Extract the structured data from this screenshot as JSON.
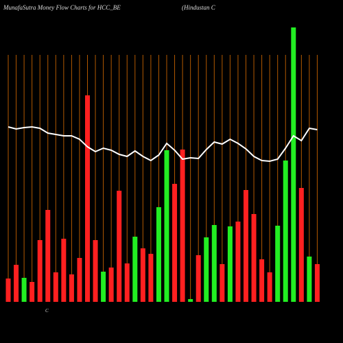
{
  "chart_data": {
    "type": "bar",
    "title": "MunafaSutra  Money  Flow  Charts for HCC_BE",
    "subtitle": "(Hindustan  C",
    "annotation": "C",
    "categories": [
      null,
      null,
      null,
      null,
      null,
      null,
      null,
      null,
      null,
      null,
      null,
      null,
      null,
      null,
      null,
      null,
      null,
      null,
      null,
      null,
      null,
      null,
      null,
      null,
      null,
      null,
      null,
      null,
      null,
      null,
      null,
      null,
      null,
      null,
      null,
      null,
      null,
      null,
      null,
      null
    ],
    "series": [
      {
        "kind": "bar",
        "values": [
          34,
          54,
          35,
          29,
          90,
          134,
          43,
          92,
          40,
          64,
          301,
          90,
          44,
          50,
          162,
          56,
          95,
          78,
          70,
          138,
          221,
          172,
          222,
          4,
          68,
          94,
          112,
          55,
          110,
          117,
          163,
          128,
          62,
          43,
          111,
          206,
          400,
          166,
          66,
          55
        ],
        "colors": [
          "#ff2020",
          "#ff2020",
          "#22ee22",
          "#ff2020",
          "#ff2020",
          "#ff2020",
          "#ff2020",
          "#ff2020",
          "#ff2020",
          "#ff2020",
          "#ff2020",
          "#ff2020",
          "#22ee22",
          "#ff2020",
          "#ff2020",
          "#ff2020",
          "#22ee22",
          "#ff2020",
          "#ff2020",
          "#22ee22",
          "#22ee22",
          "#ff2020",
          "#ff2020",
          "#22ee22",
          "#ff2020",
          "#22ee22",
          "#22ee22",
          "#ff2020",
          "#22ee22",
          "#ff2020",
          "#ff2020",
          "#ff2020",
          "#ff2020",
          "#ff2020",
          "#22ee22",
          "#22ee22",
          "#22ee22",
          "#ff2020",
          "#22ee22",
          "#ff2020"
        ]
      },
      {
        "kind": "line",
        "color": "#ffffff",
        "values": [
          255,
          252,
          254,
          255,
          253,
          246,
          244,
          242,
          242,
          237,
          226,
          219,
          224,
          221,
          215,
          212,
          220,
          212,
          206,
          214,
          231,
          221,
          208,
          210,
          209,
          222,
          233,
          230,
          237,
          231,
          223,
          212,
          206,
          205,
          208,
          224,
          242,
          235,
          253,
          251
        ]
      }
    ],
    "ylim": [
      0,
      400
    ],
    "grid_color": "#b35900",
    "background": "#000000"
  }
}
